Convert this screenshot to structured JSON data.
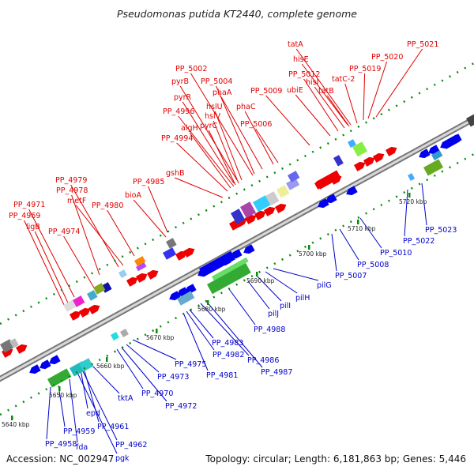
{
  "title": "Pseudomonas putida KT2440, complete genome",
  "accession_label": "Accession: NC_002947",
  "summary_label": "Topology: circular; Length: 6,181,863 bp; Genes: 5,446",
  "colors": {
    "top_label": "#e00000",
    "bottom_label": "#0000cc",
    "backbone": "#999999",
    "tick": "#0a8a0a",
    "forward_gene": "#ee0000",
    "reverse_gene": "#0000ee"
  },
  "ruler_ticks": [
    "5640 kbp",
    "5650 kbp",
    "5660 kbp",
    "5670 kbp",
    "5680 kbp",
    "5690 kbp",
    "5700 kbp",
    "5710 kbp",
    "5720 kbp"
  ],
  "top_labels": [
    "ligB",
    "PP_4969",
    "PP_4971",
    "PP_4974",
    "PP_4978",
    "PP_4979",
    "metF",
    "PP_4980",
    "bioA",
    "PP_4985",
    "gshB",
    "PP_4994",
    "algH",
    "pyrC",
    "PP_4996",
    "hslV",
    "hslU",
    "pyrR",
    "pyrB",
    "PP_5002",
    "PP_5004",
    "phaA",
    "phaC",
    "PP_5006",
    "PP_5009",
    "ubiE",
    "PP_5012",
    "hisI",
    "hisE",
    "tatA",
    "tatB",
    "tatC-2",
    "PP_5019",
    "PP_5020",
    "PP_5021"
  ],
  "bottom_labels": [
    "PP_4958",
    "PP_4959",
    "fda",
    "pgk",
    "PP_4962",
    "PP_4961",
    "epd",
    "tktA",
    "PP_4970",
    "PP_4972",
    "PP_4973",
    "PP_4975",
    "PP_4981",
    "PP_4982",
    "PP_4983",
    "PP_4986",
    "PP_4987",
    "PP_4988",
    "pilJ",
    "pilI",
    "pilH",
    "pilG",
    "PP_5007",
    "PP_5008",
    "PP_5010",
    "PP_5022",
    "PP_5023"
  ]
}
